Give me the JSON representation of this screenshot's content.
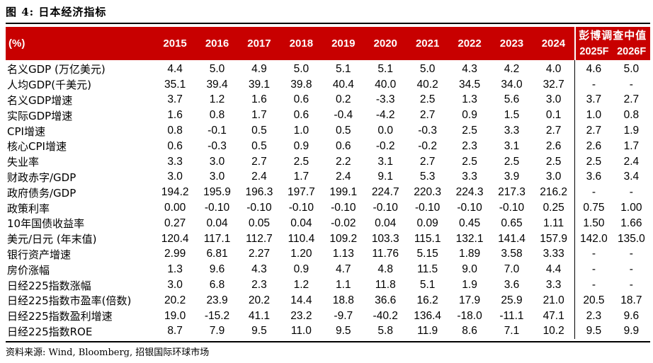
{
  "title": "图 4: 日本经济指标",
  "header": {
    "unit_label": "(%)",
    "years": [
      "2015",
      "2016",
      "2017",
      "2018",
      "2019",
      "2020",
      "2021",
      "2022",
      "2023",
      "2024"
    ],
    "forecast_title": "彭博调查中值",
    "forecast_years": [
      "2025F",
      "2026F"
    ]
  },
  "rows": [
    {
      "label": "名义GDP (万亿美元)",
      "values": [
        "4.4",
        "5.0",
        "4.9",
        "5.0",
        "5.1",
        "5.1",
        "5.0",
        "4.3",
        "4.2",
        "4.0"
      ],
      "forecast": [
        "4.6",
        "5.0"
      ]
    },
    {
      "label": "人均GDP(千美元)",
      "values": [
        "35.1",
        "39.4",
        "39.1",
        "39.8",
        "40.4",
        "40.0",
        "40.2",
        "34.5",
        "34.0",
        "32.7"
      ],
      "forecast": [
        "-",
        "-"
      ]
    },
    {
      "label": "名义GDP增速",
      "values": [
        "3.7",
        "1.2",
        "1.6",
        "0.6",
        "0.2",
        "-3.3",
        "2.5",
        "1.3",
        "5.6",
        "3.0"
      ],
      "forecast": [
        "3.7",
        "2.7"
      ]
    },
    {
      "label": "实际GDP增速",
      "values": [
        "1.6",
        "0.8",
        "1.7",
        "0.6",
        "-0.4",
        "-4.2",
        "2.7",
        "0.9",
        "1.5",
        "0.1"
      ],
      "forecast": [
        "1.0",
        "0.8"
      ]
    },
    {
      "label": "CPI增速",
      "values": [
        "0.8",
        "-0.1",
        "0.5",
        "1.0",
        "0.5",
        "0.0",
        "-0.3",
        "2.5",
        "3.3",
        "2.7"
      ],
      "forecast": [
        "2.7",
        "1.9"
      ]
    },
    {
      "label": "核心CPI增速",
      "values": [
        "0.6",
        "-0.3",
        "0.5",
        "0.9",
        "0.6",
        "-0.2",
        "-0.2",
        "2.3",
        "3.1",
        "2.6"
      ],
      "forecast": [
        "2.6",
        "1.7"
      ]
    },
    {
      "label": "失业率",
      "values": [
        "3.3",
        "3.0",
        "2.7",
        "2.5",
        "2.2",
        "3.1",
        "2.7",
        "2.5",
        "2.5",
        "2.5"
      ],
      "forecast": [
        "2.5",
        "2.4"
      ]
    },
    {
      "label": "财政赤字/GDP",
      "values": [
        "3.0",
        "3.0",
        "2.4",
        "1.7",
        "2.4",
        "9.1",
        "5.3",
        "3.3",
        "3.9",
        "3.0"
      ],
      "forecast": [
        "3.6",
        "3.4"
      ]
    },
    {
      "label": "政府债务/GDP",
      "values": [
        "194.2",
        "195.9",
        "196.3",
        "197.7",
        "199.1",
        "224.7",
        "220.3",
        "224.3",
        "217.3",
        "216.2"
      ],
      "forecast": [
        "-",
        "-"
      ]
    },
    {
      "label": "政策利率",
      "values": [
        "0.00",
        "-0.10",
        "-0.10",
        "-0.10",
        "-0.10",
        "-0.10",
        "-0.10",
        "-0.10",
        "-0.10",
        "0.25"
      ],
      "forecast": [
        "0.75",
        "1.00"
      ]
    },
    {
      "label": "10年国债收益率",
      "values": [
        "0.27",
        "0.04",
        "0.05",
        "0.04",
        "-0.02",
        "0.04",
        "0.09",
        "0.45",
        "0.65",
        "1.11"
      ],
      "forecast": [
        "1.50",
        "1.66"
      ]
    },
    {
      "label": "美元/日元 (年末值)",
      "values": [
        "120.4",
        "117.1",
        "112.7",
        "110.4",
        "109.2",
        "103.3",
        "115.1",
        "132.1",
        "141.4",
        "157.9"
      ],
      "forecast": [
        "142.0",
        "135.0"
      ]
    },
    {
      "label": "银行资产增速",
      "values": [
        "2.99",
        "6.81",
        "2.27",
        "1.20",
        "1.13",
        "11.76",
        "5.15",
        "1.89",
        "3.58",
        "3.33"
      ],
      "forecast": [
        "-",
        "-"
      ]
    },
    {
      "label": "房价涨幅",
      "values": [
        "1.3",
        "9.6",
        "4.3",
        "0.9",
        "4.7",
        "4.8",
        "11.5",
        "9.0",
        "7.0",
        "4.4"
      ],
      "forecast": [
        "-",
        "-"
      ]
    },
    {
      "label": "日经225指数涨幅",
      "values": [
        "3.0",
        "6.8",
        "2.3",
        "1.2",
        "1.1",
        "11.8",
        "5.1",
        "1.9",
        "3.6",
        "3.3"
      ],
      "forecast": [
        "-",
        "-"
      ]
    },
    {
      "label": "日经225指数市盈率(倍数)",
      "values": [
        "20.2",
        "23.9",
        "20.2",
        "14.4",
        "18.8",
        "36.6",
        "16.2",
        "17.9",
        "25.9",
        "21.0"
      ],
      "forecast": [
        "20.5",
        "18.7"
      ]
    },
    {
      "label": "日经225指数盈利增速",
      "values": [
        "19.0",
        "-15.2",
        "41.1",
        "23.2",
        "-9.7",
        "-40.2",
        "136.4",
        "-18.0",
        "-11.1",
        "47.1"
      ],
      "forecast": [
        "2.3",
        "9.6"
      ]
    },
    {
      "label": "日经225指数ROE",
      "values": [
        "8.7",
        "7.9",
        "9.5",
        "11.0",
        "9.5",
        "5.8",
        "11.9",
        "8.6",
        "7.1",
        "10.2"
      ],
      "forecast": [
        "9.5",
        "9.9"
      ]
    }
  ],
  "source": "资料来源: Wind, Bloomberg, 招银国际环球市场"
}
